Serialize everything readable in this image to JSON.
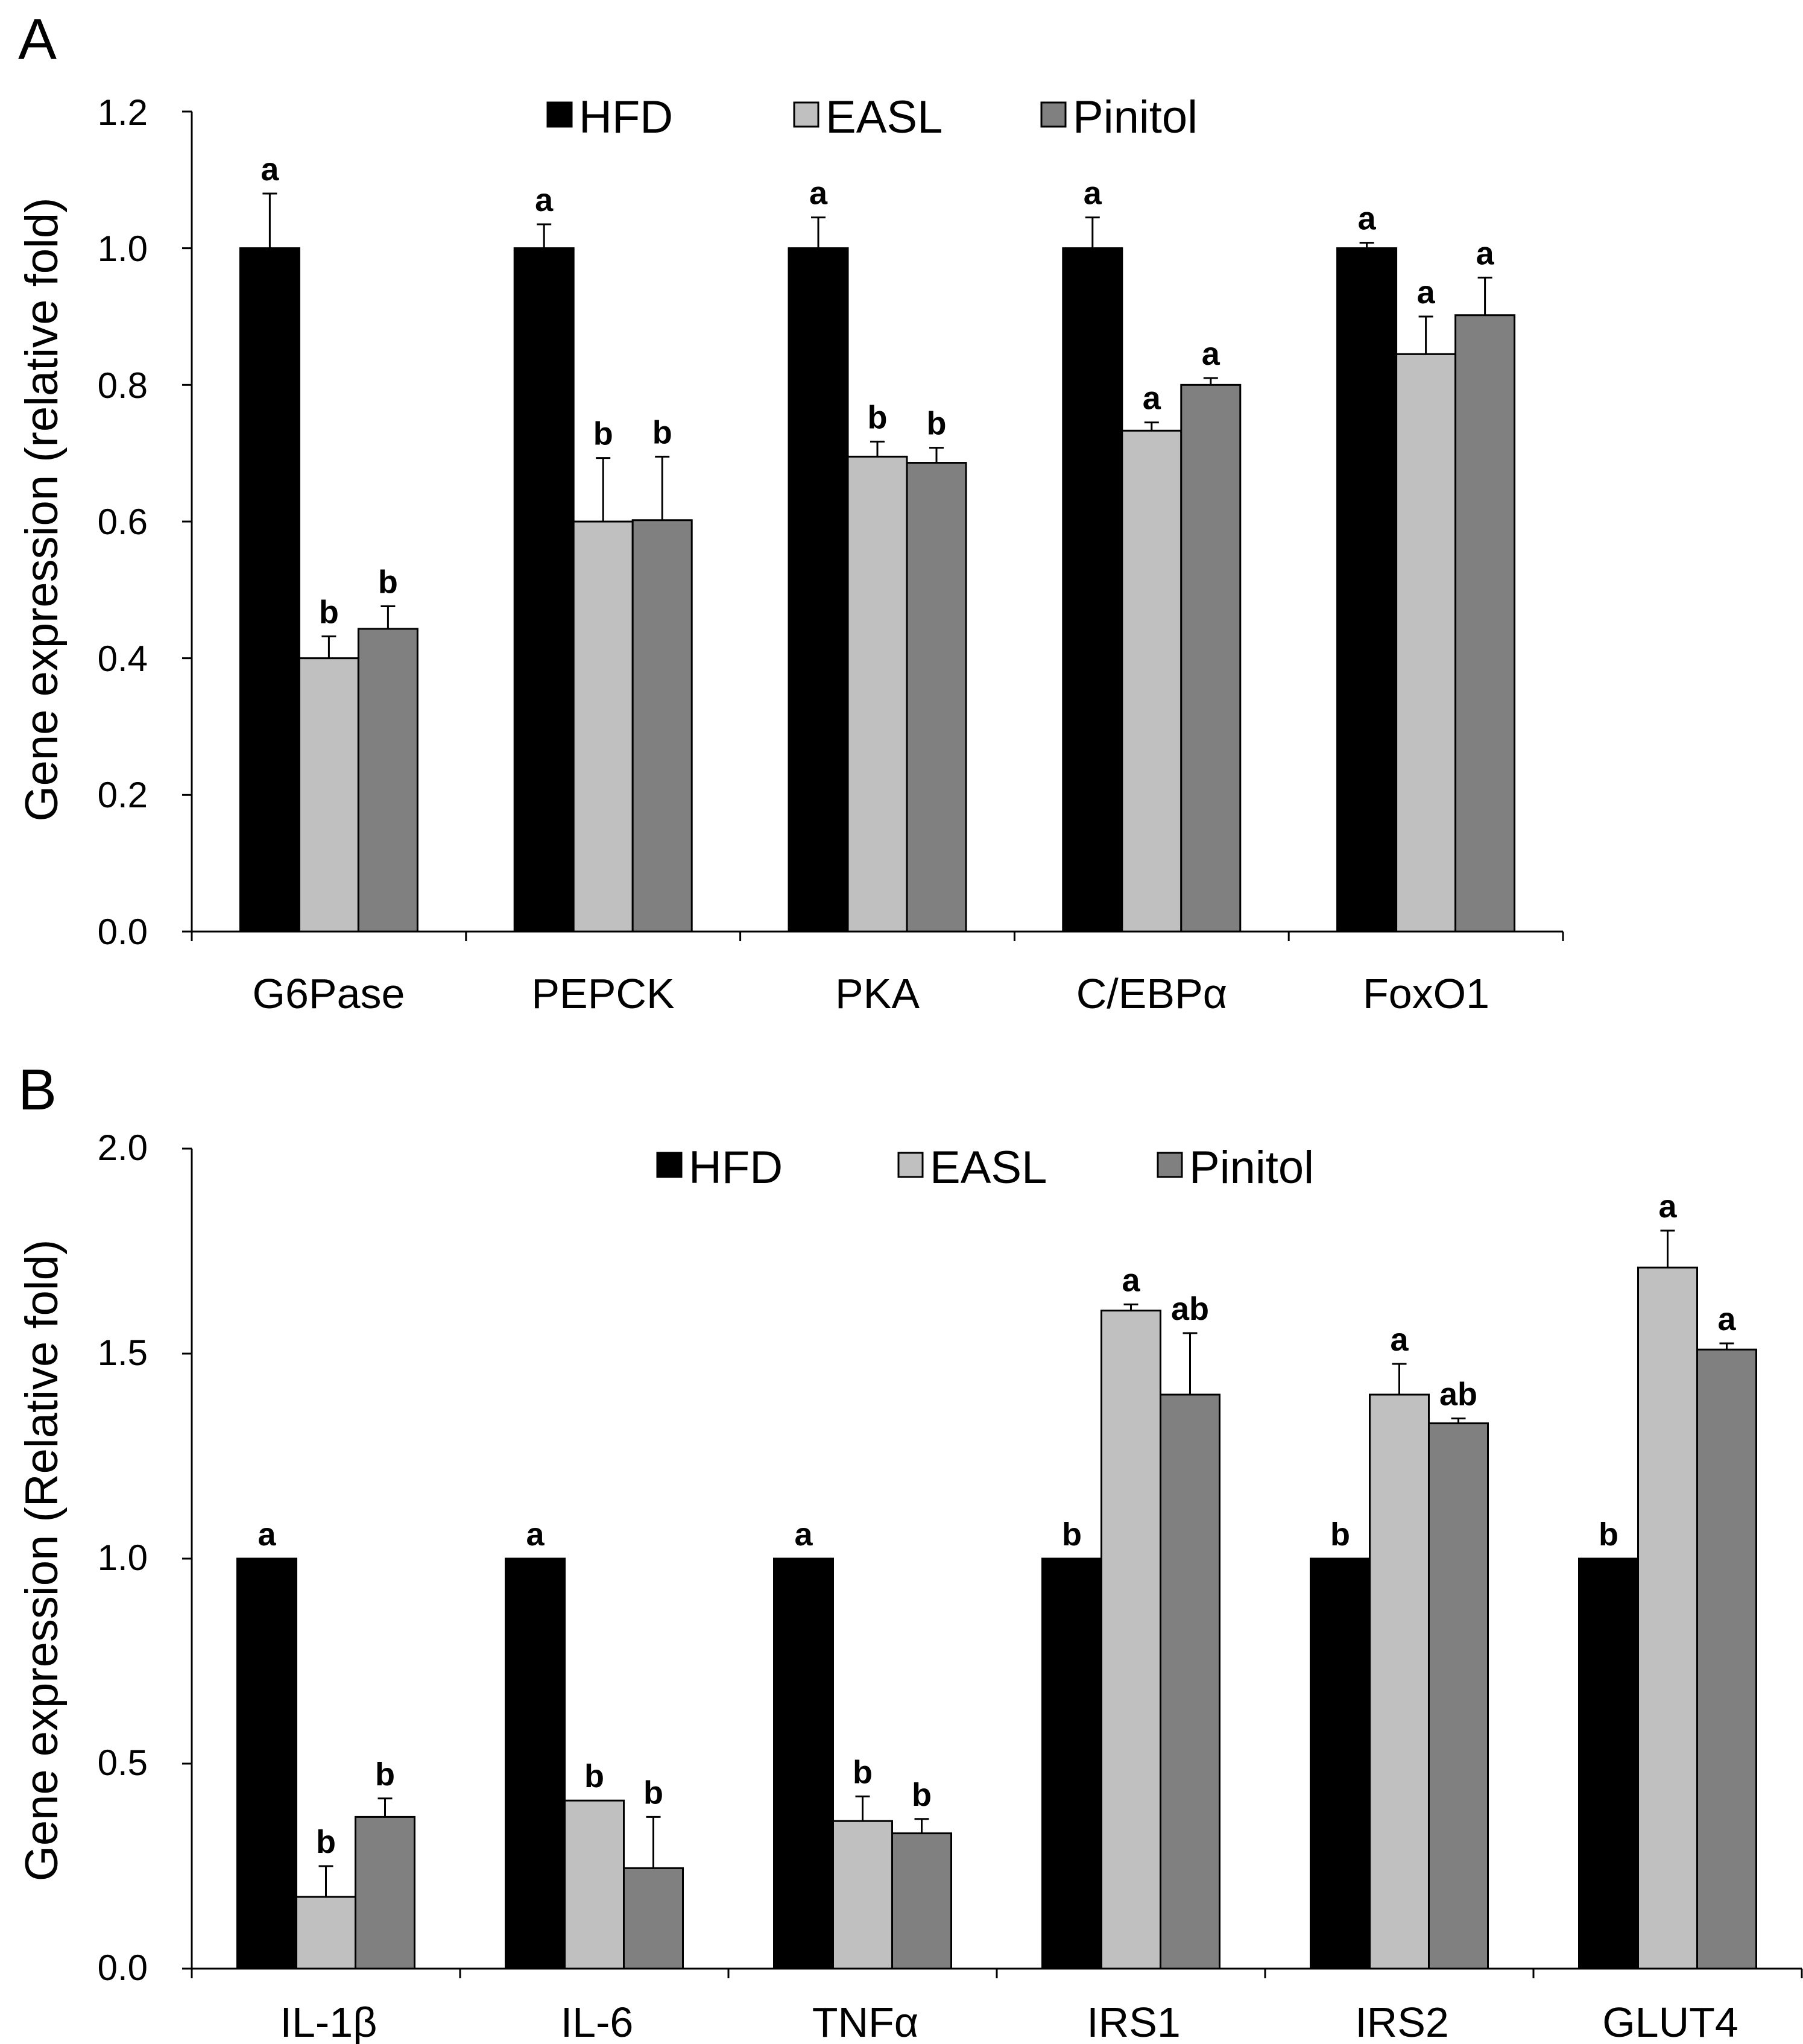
{
  "colors": {
    "HFD": "#000000",
    "EASL": "#c0c0c0",
    "Pinitol": "#808080",
    "axis": "#000000"
  },
  "chart_data": [
    {
      "type": "bar",
      "panel": "A",
      "title": "",
      "xlabel": "",
      "ylabel": "Gene expression (relative fold)",
      "ylim": [
        0,
        1.2
      ],
      "yticks": [
        "0.0",
        "0.2",
        "0.4",
        "0.6",
        "0.8",
        "1.0",
        "1.2"
      ],
      "categories": [
        "G6Pase",
        "PEPCK",
        "PKA",
        "C/EBPα",
        "FoxO1"
      ],
      "legend_position": "top-center",
      "series": [
        {
          "name": "HFD",
          "values": [
            1.0,
            1.0,
            1.0,
            1.0,
            1.0
          ],
          "errors": [
            0.08,
            0.035,
            0.045,
            0.045,
            0.008
          ],
          "labels": [
            "a",
            "a",
            "a",
            "a",
            "a"
          ]
        },
        {
          "name": "EASL",
          "values": [
            0.4,
            0.6,
            0.695,
            0.733,
            0.845
          ],
          "errors": [
            0.032,
            0.093,
            0.022,
            0.012,
            0.055
          ],
          "labels": [
            "b",
            "b",
            "b",
            "a",
            "a"
          ]
        },
        {
          "name": "Pinitol",
          "values": [
            0.443,
            0.602,
            0.686,
            0.8,
            0.902
          ],
          "errors": [
            0.033,
            0.093,
            0.022,
            0.01,
            0.055
          ],
          "labels": [
            "b",
            "b",
            "b",
            "a",
            "a"
          ]
        }
      ]
    },
    {
      "type": "bar",
      "panel": "B",
      "title": "",
      "xlabel": "",
      "ylabel": "Gene expression (Relative fold)",
      "ylim": [
        0,
        2.0
      ],
      "yticks": [
        "0.0",
        "0.5",
        "1.0",
        "1.5",
        "2.0"
      ],
      "categories": [
        "IL-1β",
        "IL-6",
        "TNFα",
        "IRS1",
        "IRS2",
        "GLUT4"
      ],
      "legend_position": "top-center",
      "series": [
        {
          "name": "HFD",
          "values": [
            1.0,
            1.0,
            1.0,
            1.0,
            1.0,
            1.0
          ],
          "errors": [
            0,
            0,
            0,
            0,
            0,
            0
          ],
          "labels": [
            "a",
            "a",
            "a",
            "b",
            "b",
            "b"
          ]
        },
        {
          "name": "EASL",
          "values": [
            0.175,
            0.41,
            0.36,
            1.605,
            1.4,
            1.71
          ],
          "errors": [
            0.075,
            0.0,
            0.06,
            0.015,
            0.075,
            0.09
          ],
          "labels": [
            "b",
            "b",
            "b",
            "a",
            "a",
            "a"
          ]
        },
        {
          "name": "Pinitol",
          "values": [
            0.37,
            0.245,
            0.33,
            1.4,
            1.33,
            1.51
          ],
          "errors": [
            0.045,
            0.125,
            0.035,
            0.15,
            0.012,
            0.015
          ],
          "labels": [
            "b",
            "b",
            "b",
            "ab",
            "ab",
            "a"
          ]
        }
      ]
    }
  ]
}
